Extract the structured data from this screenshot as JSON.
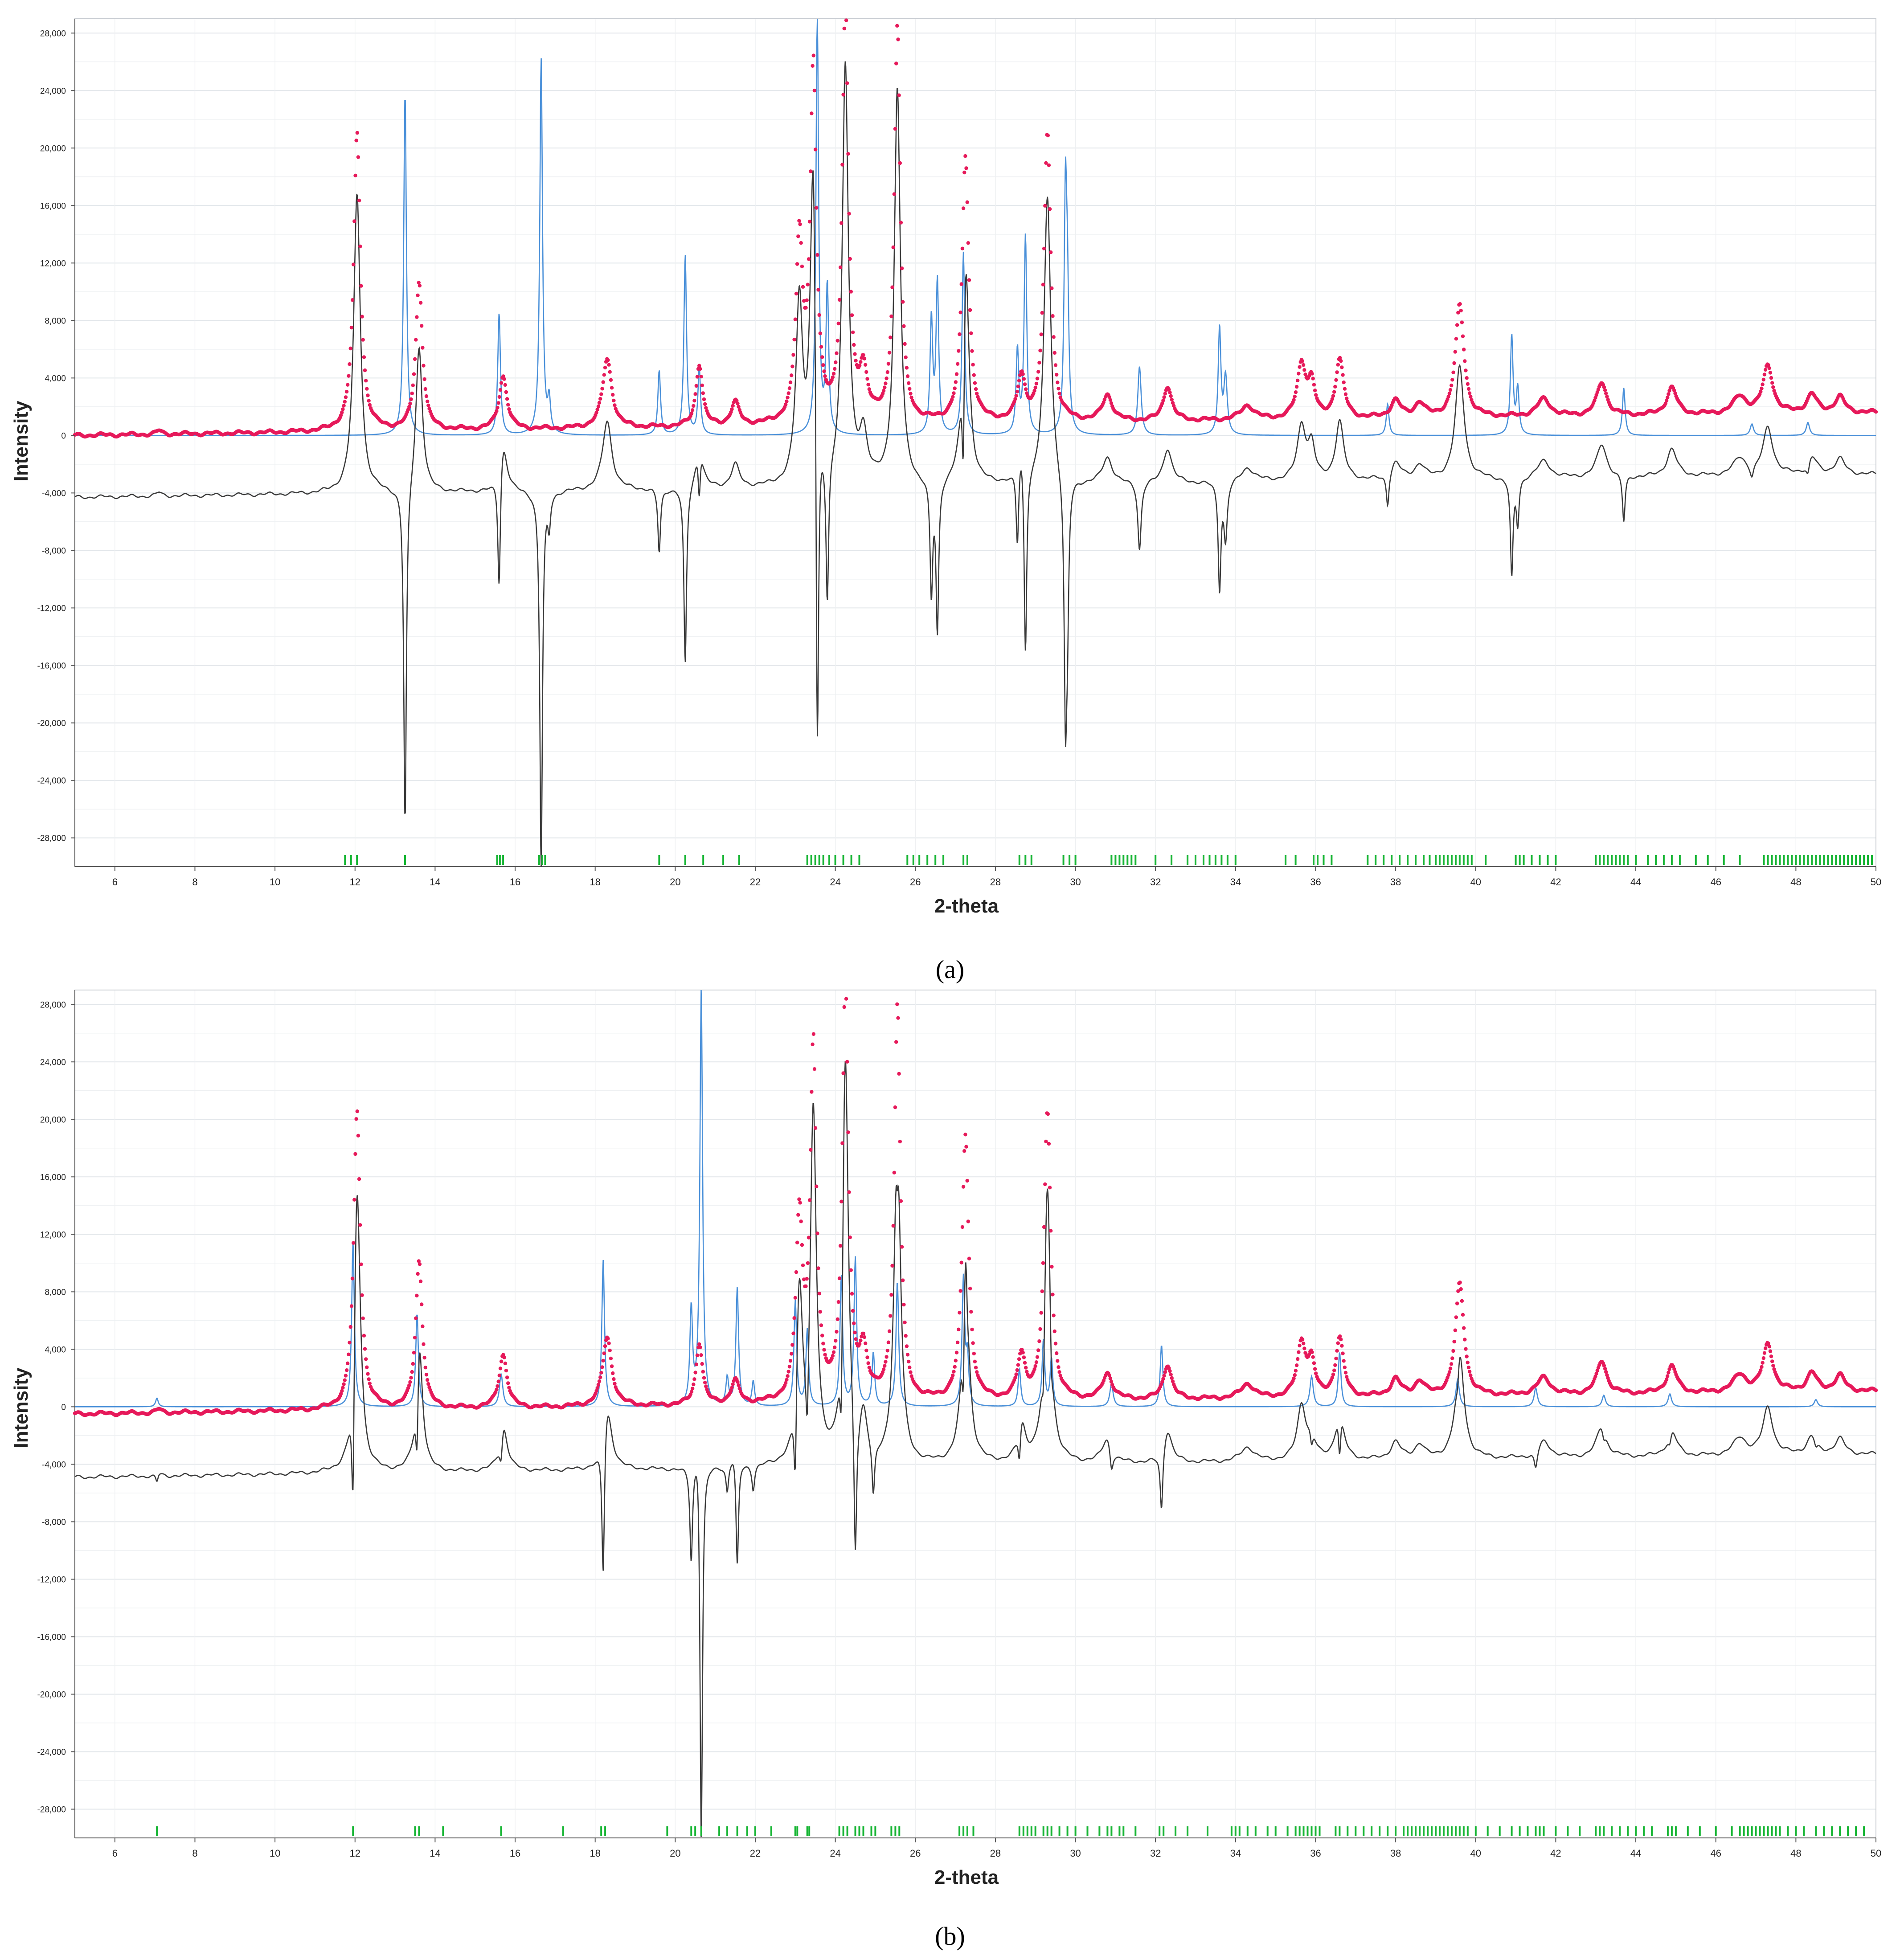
{
  "captions": [
    "(a)",
    "(b)"
  ],
  "chart_data": [
    {
      "type": "line",
      "panel": "(a)",
      "xlabel": "2-theta",
      "ylabel": "Intensity",
      "xlim": [
        5,
        50
      ],
      "ylim": [
        -30000,
        29000
      ],
      "xticks": [
        6,
        8,
        10,
        12,
        14,
        16,
        18,
        20,
        22,
        24,
        26,
        28,
        30,
        32,
        34,
        36,
        38,
        40,
        42,
        44,
        46,
        48,
        50
      ],
      "yticks": [
        28000,
        24000,
        20000,
        16000,
        12000,
        8000,
        4000,
        0,
        -4000,
        -8000,
        -12000,
        -16000,
        -20000,
        -24000,
        -28000
      ],
      "ytick_labels": [
        "28,000",
        "24,000",
        "20,000",
        "16,000",
        "12,000",
        "8,000",
        "4,000",
        "0",
        "-4,000",
        "-8,000",
        "-12,000",
        "-16,000",
        "-20,000",
        "-24,000",
        "-28,000"
      ],
      "grid": true,
      "colors": {
        "observed": "#e6195a",
        "calculated": "#4a90d9",
        "difference": "#3a3a3a",
        "reflections": "#17b534"
      },
      "observed_baseline": 0,
      "observed_slope": 35,
      "observed_peaks": [
        [
          7.1,
          250,
          0.08
        ],
        [
          12.05,
          20800,
          0.1
        ],
        [
          13.6,
          10300,
          0.1
        ],
        [
          15.7,
          3700,
          0.12
        ],
        [
          18.3,
          4800,
          0.14
        ],
        [
          20.6,
          4300,
          0.1
        ],
        [
          21.5,
          1600,
          0.12
        ],
        [
          23.1,
          12500,
          0.1
        ],
        [
          23.45,
          24500,
          0.09
        ],
        [
          24.25,
          29000,
          0.09
        ],
        [
          24.7,
          3300,
          0.12
        ],
        [
          25.55,
          27500,
          0.09
        ],
        [
          27.25,
          18500,
          0.1
        ],
        [
          28.65,
          3000,
          0.12
        ],
        [
          29.3,
          20100,
          0.1
        ],
        [
          30.8,
          1800,
          0.15
        ],
        [
          32.3,
          2400,
          0.13
        ],
        [
          34.3,
          1000,
          0.2
        ],
        [
          35.65,
          3800,
          0.13
        ],
        [
          35.9,
          2300,
          0.1
        ],
        [
          36.6,
          4100,
          0.12
        ],
        [
          38.0,
          1200,
          0.15
        ],
        [
          38.6,
          1000,
          0.15
        ],
        [
          39.6,
          7800,
          0.13
        ],
        [
          41.7,
          1200,
          0.2
        ],
        [
          43.15,
          2300,
          0.15
        ],
        [
          44.9,
          1900,
          0.15
        ],
        [
          46.6,
          1200,
          0.2
        ],
        [
          47.3,
          3300,
          0.15
        ],
        [
          48.4,
          1300,
          0.15
        ],
        [
          49.1,
          1100,
          0.15
        ]
      ],
      "calculated_peaks": [
        [
          13.25,
          23800,
          0.04
        ],
        [
          15.6,
          8500,
          0.04
        ],
        [
          16.65,
          26200,
          0.04
        ],
        [
          16.85,
          2200,
          0.04
        ],
        [
          19.6,
          4500,
          0.04
        ],
        [
          20.25,
          12500,
          0.04
        ],
        [
          20.6,
          4600,
          0.04
        ],
        [
          23.55,
          29000,
          0.04
        ],
        [
          23.8,
          10200,
          0.04
        ],
        [
          26.4,
          8000,
          0.04
        ],
        [
          26.55,
          10600,
          0.04
        ],
        [
          27.2,
          12700,
          0.04
        ],
        [
          28.55,
          5800,
          0.04
        ],
        [
          28.75,
          13800,
          0.04
        ],
        [
          29.75,
          16100,
          0.04
        ],
        [
          29.8,
          8000,
          0.04
        ],
        [
          31.6,
          4800,
          0.05
        ],
        [
          33.6,
          7400,
          0.04
        ],
        [
          33.75,
          4000,
          0.05
        ],
        [
          37.8,
          2200,
          0.04
        ],
        [
          40.9,
          6900,
          0.04
        ],
        [
          41.05,
          3200,
          0.04
        ],
        [
          43.7,
          3300,
          0.04
        ],
        [
          46.9,
          800,
          0.05
        ],
        [
          48.3,
          900,
          0.05
        ]
      ],
      "difference_offset": -4300,
      "difference_minima": [
        -27600,
        -30000,
        -28300,
        -18800
      ],
      "reflection_ticks": [
        11.75,
        11.9,
        12.05,
        13.25,
        15.55,
        15.62,
        15.7,
        16.6,
        16.68,
        16.75,
        19.6,
        20.25,
        20.7,
        21.2,
        21.6,
        23.3,
        23.4,
        23.5,
        23.6,
        23.7,
        23.85,
        24.0,
        24.2,
        24.4,
        24.6,
        25.8,
        25.95,
        26.1,
        26.3,
        26.5,
        26.7,
        27.2,
        27.3,
        28.6,
        28.75,
        28.9,
        29.7,
        29.85,
        30.0,
        30.9,
        31.0,
        31.1,
        31.2,
        31.3,
        31.4,
        31.5,
        32.0,
        32.4,
        32.8,
        33.0,
        33.2,
        33.35,
        33.5,
        33.65,
        33.8,
        34.0,
        35.25,
        35.5,
        35.95,
        36.05,
        36.2,
        36.4,
        37.3,
        37.5,
        37.7,
        37.9,
        38.1,
        38.3,
        38.5,
        38.7,
        38.85,
        39.0,
        39.1,
        39.2,
        39.3,
        39.4,
        39.5,
        39.6,
        39.7,
        39.8,
        39.9,
        40.25,
        41.0,
        41.1,
        41.2,
        41.4,
        41.6,
        41.8,
        42.0,
        43.0,
        43.1,
        43.2,
        43.3,
        43.4,
        43.5,
        43.6,
        43.7,
        43.8,
        44.0,
        44.3,
        44.5,
        44.7,
        44.9,
        45.1,
        45.5,
        45.8,
        46.2,
        46.6,
        47.2,
        47.3,
        47.4,
        47.5,
        47.6,
        47.7,
        47.8,
        47.9,
        48.0,
        48.1,
        48.2,
        48.3,
        48.4,
        48.5,
        48.6,
        48.7,
        48.8,
        48.9,
        49.0,
        49.1,
        49.2,
        49.3,
        49.4,
        49.5,
        49.6,
        49.7,
        49.8,
        49.9
      ]
    },
    {
      "type": "line",
      "panel": "(b)",
      "xlabel": "2-theta",
      "ylabel": "Intensity",
      "xlim": [
        5,
        50
      ],
      "ylim": [
        -30000,
        29000
      ],
      "xticks": [
        6,
        8,
        10,
        12,
        14,
        16,
        18,
        20,
        22,
        24,
        26,
        28,
        30,
        32,
        34,
        36,
        38,
        40,
        42,
        44,
        46,
        48,
        50
      ],
      "yticks": [
        28000,
        24000,
        20000,
        16000,
        12000,
        8000,
        4000,
        0,
        -4000,
        -8000,
        -12000,
        -16000,
        -20000,
        -24000,
        -28000
      ],
      "ytick_labels": [
        "28,000",
        "24,000",
        "20,000",
        "16,000",
        "12,000",
        "8,000",
        "4,000",
        "0",
        "-4,000",
        "-8,000",
        "-12,000",
        "-16,000",
        "-20,000",
        "-24,000",
        "-28,000"
      ],
      "grid": true,
      "colors": {
        "observed": "#e6195a",
        "calculated": "#4a90d9",
        "difference": "#3a3a3a",
        "reflections": "#17b534"
      },
      "observed_baseline": -500,
      "observed_slope": 35,
      "observed_peaks": [
        [
          7.1,
          250,
          0.08
        ],
        [
          12.05,
          20800,
          0.1
        ],
        [
          13.6,
          10300,
          0.1
        ],
        [
          15.7,
          3700,
          0.12
        ],
        [
          18.3,
          4800,
          0.14
        ],
        [
          20.6,
          4300,
          0.1
        ],
        [
          21.5,
          1600,
          0.12
        ],
        [
          23.1,
          12500,
          0.1
        ],
        [
          23.45,
          24500,
          0.09
        ],
        [
          24.25,
          29000,
          0.09
        ],
        [
          24.7,
          3300,
          0.12
        ],
        [
          25.55,
          27500,
          0.09
        ],
        [
          27.25,
          18500,
          0.1
        ],
        [
          28.65,
          3000,
          0.12
        ],
        [
          29.3,
          20100,
          0.1
        ],
        [
          30.8,
          1800,
          0.15
        ],
        [
          32.3,
          2400,
          0.13
        ],
        [
          34.3,
          1000,
          0.2
        ],
        [
          35.65,
          3800,
          0.13
        ],
        [
          35.9,
          2300,
          0.1
        ],
        [
          36.6,
          4100,
          0.12
        ],
        [
          38.0,
          1200,
          0.15
        ],
        [
          38.6,
          1000,
          0.15
        ],
        [
          39.6,
          7800,
          0.13
        ],
        [
          41.7,
          1200,
          0.2
        ],
        [
          43.15,
          2300,
          0.15
        ],
        [
          44.9,
          1900,
          0.15
        ],
        [
          46.6,
          1200,
          0.2
        ],
        [
          47.3,
          3300,
          0.15
        ],
        [
          48.4,
          1300,
          0.15
        ],
        [
          49.1,
          1100,
          0.15
        ]
      ],
      "calculated_peaks": [
        [
          7.05,
          600,
          0.04
        ],
        [
          11.95,
          11500,
          0.04
        ],
        [
          13.55,
          6500,
          0.04
        ],
        [
          15.65,
          2300,
          0.05
        ],
        [
          18.2,
          10200,
          0.04
        ],
        [
          20.4,
          6600,
          0.04
        ],
        [
          20.65,
          29000,
          0.04
        ],
        [
          21.3,
          1900,
          0.04
        ],
        [
          21.55,
          8200,
          0.04
        ],
        [
          21.95,
          1700,
          0.04
        ],
        [
          23.0,
          7300,
          0.04
        ],
        [
          23.3,
          5300,
          0.04
        ],
        [
          24.15,
          9000,
          0.04
        ],
        [
          24.5,
          10300,
          0.04
        ],
        [
          24.95,
          3700,
          0.04
        ],
        [
          25.55,
          8700,
          0.04
        ],
        [
          27.2,
          8800,
          0.04
        ],
        [
          27.3,
          3200,
          0.04
        ],
        [
          28.6,
          2600,
          0.04
        ],
        [
          29.2,
          4600,
          0.04
        ],
        [
          29.4,
          3300,
          0.04
        ],
        [
          30.9,
          1600,
          0.05
        ],
        [
          32.15,
          4300,
          0.04
        ],
        [
          35.9,
          2100,
          0.05
        ],
        [
          36.6,
          3800,
          0.04
        ],
        [
          39.55,
          1900,
          0.05
        ],
        [
          41.5,
          1300,
          0.05
        ],
        [
          43.2,
          800,
          0.05
        ],
        [
          44.85,
          900,
          0.05
        ],
        [
          48.5,
          500,
          0.05
        ]
      ],
      "difference_offset": -4900,
      "difference_minima": [
        -30000
      ],
      "reflection_ticks": [
        7.05,
        11.95,
        13.5,
        13.6,
        14.2,
        15.65,
        17.2,
        18.15,
        18.25,
        19.8,
        20.4,
        20.5,
        20.65,
        21.1,
        21.3,
        21.55,
        21.8,
        22.0,
        22.4,
        23.0,
        23.05,
        23.3,
        23.35,
        24.1,
        24.2,
        24.3,
        24.5,
        24.6,
        24.7,
        24.9,
        25.0,
        25.4,
        25.5,
        25.6,
        27.1,
        27.2,
        27.3,
        27.45,
        28.6,
        28.7,
        28.8,
        28.9,
        29.0,
        29.2,
        29.3,
        29.4,
        29.6,
        29.8,
        30.0,
        30.3,
        30.6,
        30.8,
        30.9,
        31.1,
        31.2,
        31.5,
        32.1,
        32.2,
        32.5,
        32.8,
        33.3,
        33.9,
        34.0,
        34.1,
        34.3,
        34.5,
        34.8,
        35.0,
        35.3,
        35.5,
        35.6,
        35.7,
        35.8,
        35.9,
        36.0,
        36.1,
        36.5,
        36.6,
        36.8,
        37.0,
        37.2,
        37.4,
        37.6,
        37.8,
        38.0,
        38.2,
        38.3,
        38.4,
        38.5,
        38.6,
        38.7,
        38.8,
        38.9,
        39.0,
        39.1,
        39.2,
        39.3,
        39.4,
        39.5,
        39.6,
        39.7,
        39.8,
        40.0,
        40.3,
        40.6,
        40.9,
        41.1,
        41.3,
        41.5,
        41.6,
        41.7,
        42.0,
        42.3,
        42.6,
        43.0,
        43.1,
        43.2,
        43.4,
        43.6,
        43.8,
        44.0,
        44.2,
        44.4,
        44.8,
        44.9,
        45.0,
        45.3,
        45.6,
        46.0,
        46.4,
        46.6,
        46.7,
        46.8,
        46.9,
        47.0,
        47.1,
        47.2,
        47.3,
        47.4,
        47.5,
        47.6,
        47.8,
        48.0,
        48.2,
        48.5,
        48.7,
        48.9,
        49.1,
        49.3,
        49.5,
        49.7
      ]
    }
  ]
}
